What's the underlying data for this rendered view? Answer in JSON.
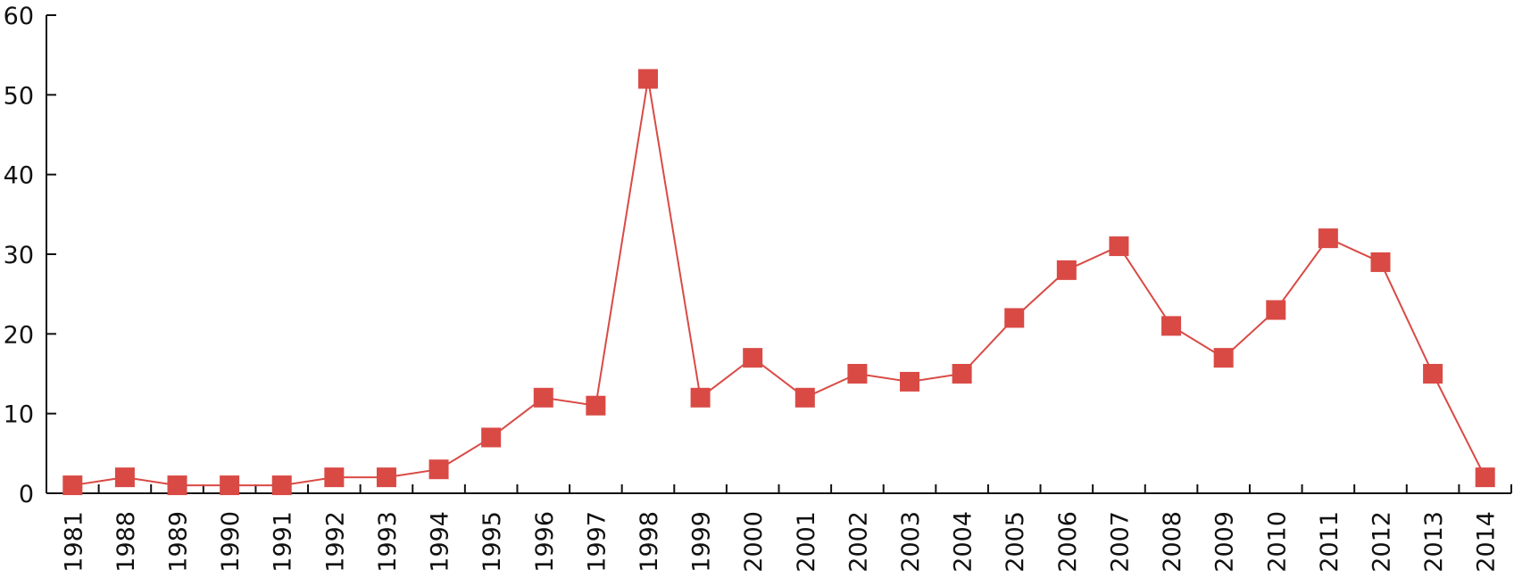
{
  "chart_data": {
    "type": "line",
    "categories": [
      "1981",
      "1988",
      "1989",
      "1990",
      "1991",
      "1992",
      "1993",
      "1994",
      "1995",
      "1996",
      "1997",
      "1998",
      "1999",
      "2000",
      "2001",
      "2002",
      "2003",
      "2004",
      "2005",
      "2006",
      "2007",
      "2008",
      "2009",
      "2010",
      "2011",
      "2012",
      "2013",
      "2014"
    ],
    "values": [
      1,
      2,
      1,
      1,
      1,
      2,
      2,
      3,
      7,
      12,
      11,
      52,
      12,
      17,
      12,
      15,
      14,
      15,
      22,
      28,
      31,
      21,
      17,
      23,
      32,
      29,
      15,
      2
    ],
    "color": "#d94a45",
    "ylim": [
      0,
      60
    ],
    "yticks": [
      0,
      10,
      20,
      30,
      40,
      50,
      60
    ],
    "grid": false
  }
}
